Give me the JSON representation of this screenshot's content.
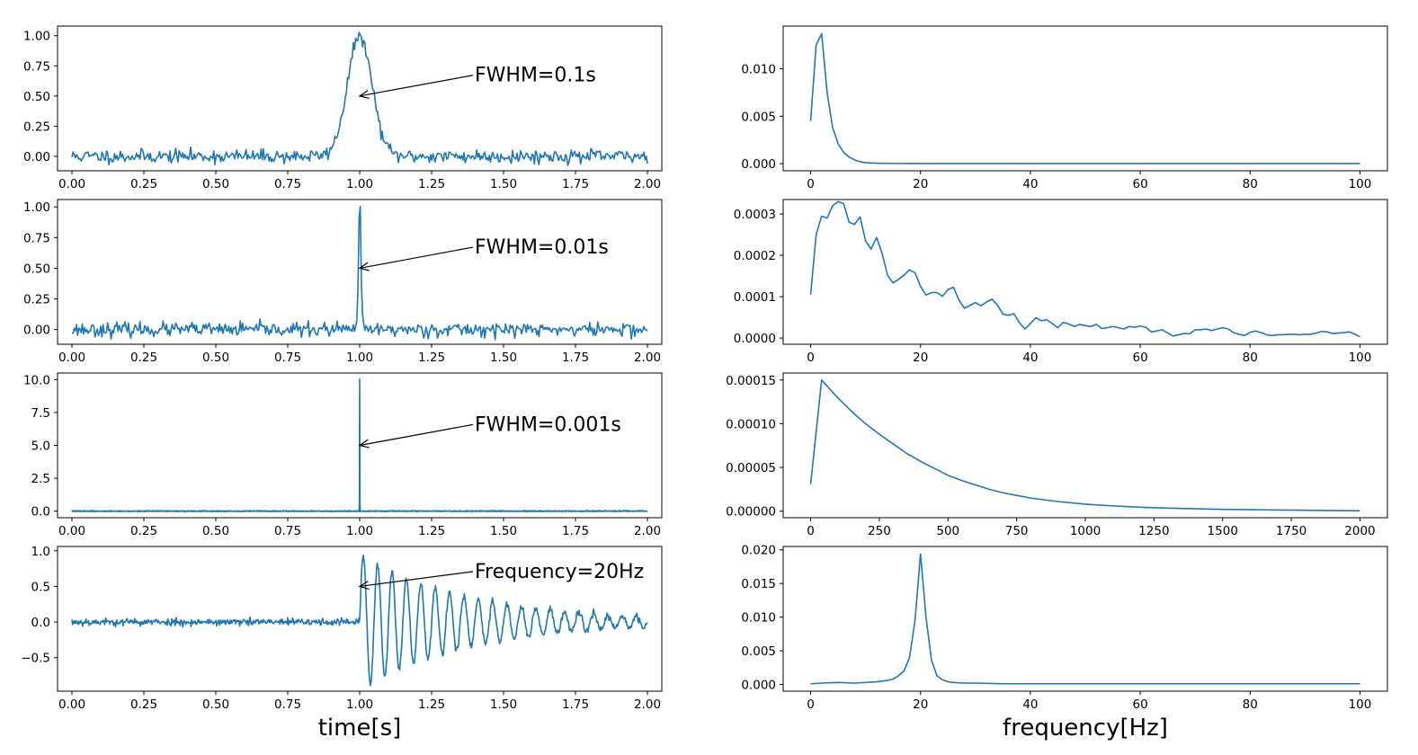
{
  "figure": {
    "left_xlabel": "time[s]",
    "right_xlabel": "frequency[Hz]",
    "line_color": "#1f77b4"
  },
  "chart_data": [
    {
      "type": "line",
      "panel": "time-1",
      "xlim": [
        -0.05,
        2.05
      ],
      "ylim": [
        -0.12,
        1.08
      ],
      "xticks": [
        "0.00",
        "0.25",
        "0.50",
        "0.75",
        "1.00",
        "1.25",
        "1.50",
        "1.75",
        "2.00"
      ],
      "xtick_values": [
        0,
        0.25,
        0.5,
        0.75,
        1,
        1.25,
        1.5,
        1.75,
        2
      ],
      "yticks": [
        "0.00",
        "0.25",
        "0.50",
        "0.75",
        "1.00"
      ],
      "ytick_values": [
        0,
        0.25,
        0.5,
        0.75,
        1
      ],
      "signal": {
        "kind": "gaussian",
        "center": 1.0,
        "fwhm": 0.1,
        "amplitude": 1.0,
        "noise": 0.028,
        "samples": 500,
        "seed": 11
      },
      "annotation": {
        "text": "FWHM=0.1s",
        "point": [
          1.0,
          0.5
        ],
        "text_at": [
          1.4,
          0.62
        ]
      }
    },
    {
      "type": "line",
      "panel": "time-2",
      "xlim": [
        -0.05,
        2.05
      ],
      "ylim": [
        -0.12,
        1.06
      ],
      "xticks": [
        "0.00",
        "0.25",
        "0.50",
        "0.75",
        "1.00",
        "1.25",
        "1.50",
        "1.75",
        "2.00"
      ],
      "xtick_values": [
        0,
        0.25,
        0.5,
        0.75,
        1,
        1.25,
        1.5,
        1.75,
        2
      ],
      "yticks": [
        "0.00",
        "0.25",
        "0.50",
        "0.75",
        "1.00"
      ],
      "ytick_values": [
        0,
        0.25,
        0.5,
        0.75,
        1
      ],
      "signal": {
        "kind": "gaussian",
        "center": 1.0,
        "fwhm": 0.01,
        "amplitude": 1.0,
        "noise": 0.028,
        "samples": 500,
        "seed": 23
      },
      "annotation": {
        "text": "FWHM=0.01s",
        "point": [
          1.0,
          0.5
        ],
        "text_at": [
          1.4,
          0.62
        ]
      }
    },
    {
      "type": "line",
      "panel": "time-3",
      "xlim": [
        -0.05,
        2.05
      ],
      "ylim": [
        -0.5,
        10.5
      ],
      "xticks": [
        "0.00",
        "0.25",
        "0.50",
        "0.75",
        "1.00",
        "1.25",
        "1.50",
        "1.75",
        "2.00"
      ],
      "xtick_values": [
        0,
        0.25,
        0.5,
        0.75,
        1,
        1.25,
        1.5,
        1.75,
        2
      ],
      "yticks": [
        "0.0",
        "2.5",
        "5.0",
        "7.5",
        "10.0"
      ],
      "ytick_values": [
        0,
        2.5,
        5,
        7.5,
        10
      ],
      "signal": {
        "kind": "gaussian",
        "center": 1.0,
        "fwhm": 0.001,
        "amplitude": 10.0,
        "noise": 0.02,
        "samples": 2001,
        "seed": 37
      },
      "annotation": {
        "text": "FWHM=0.001s",
        "point": [
          1.0,
          5.0
        ],
        "text_at": [
          1.4,
          6.1
        ]
      }
    },
    {
      "type": "line",
      "panel": "time-4",
      "xlim": [
        -0.05,
        2.05
      ],
      "ylim": [
        -0.97,
        1.06
      ],
      "xticks": [
        "0.00",
        "0.25",
        "0.50",
        "0.75",
        "1.00",
        "1.25",
        "1.50",
        "1.75",
        "2.00"
      ],
      "xtick_values": [
        0,
        0.25,
        0.5,
        0.75,
        1,
        1.25,
        1.5,
        1.75,
        2
      ],
      "yticks": [
        "−0.5",
        "0.0",
        "0.5",
        "1.0"
      ],
      "ytick_values": [
        -0.5,
        0,
        0.5,
        1
      ],
      "signal": {
        "kind": "damped_sine",
        "start": 1.0,
        "frequency": 20,
        "amplitude": 0.95,
        "decay": 2.6,
        "noise": 0.025,
        "samples": 900,
        "seed": 53
      },
      "annotation": {
        "text": "Frequency=20Hz",
        "point": [
          1.0,
          0.5
        ],
        "text_at": [
          1.4,
          0.62
        ]
      }
    },
    {
      "type": "line",
      "panel": "freq-1",
      "xlim": [
        -5,
        105
      ],
      "ylim": [
        -0.00075,
        0.0145
      ],
      "xticks": [
        "0",
        "20",
        "40",
        "60",
        "80",
        "100"
      ],
      "xtick_values": [
        0,
        20,
        40,
        60,
        80,
        100
      ],
      "yticks": [
        "0.000",
        "0.005",
        "0.010"
      ],
      "ytick_values": [
        0,
        0.005,
        0.01
      ],
      "x": [
        0,
        1,
        2,
        3,
        4,
        5,
        6,
        7,
        8,
        9,
        10,
        12,
        15,
        20,
        30,
        40,
        60,
        80,
        100
      ],
      "y": [
        0.0045,
        0.0125,
        0.0137,
        0.0075,
        0.0038,
        0.0021,
        0.0012,
        0.0007,
        0.0004,
        0.0002,
        0.0001,
        5e-05,
        2e-05,
        1e-05,
        1e-05,
        1e-05,
        1e-05,
        1e-05,
        1e-05
      ]
    },
    {
      "type": "line",
      "panel": "freq-2",
      "xlim": [
        -5,
        105
      ],
      "ylim": [
        -1.5e-05,
        0.000335
      ],
      "xticks": [
        "0",
        "20",
        "40",
        "60",
        "80",
        "100"
      ],
      "xtick_values": [
        0,
        20,
        40,
        60,
        80,
        100
      ],
      "yticks": [
        "0.0000",
        "0.0001",
        "0.0002",
        "0.0003"
      ],
      "ytick_values": [
        0,
        0.0001,
        0.0002,
        0.0003
      ],
      "x": [
        0,
        1,
        2,
        3,
        4,
        5,
        6,
        7,
        8,
        9,
        10,
        11,
        12,
        13,
        14,
        15,
        16,
        17,
        18,
        19,
        20,
        21,
        22,
        23,
        24,
        25,
        26,
        27,
        28,
        29,
        30,
        31,
        32,
        33,
        34,
        35,
        36,
        37,
        38,
        39,
        40,
        41,
        42,
        43,
        44,
        45,
        46,
        47,
        48,
        49,
        50,
        51,
        52,
        53,
        54,
        55,
        56,
        57,
        58,
        59,
        60,
        61,
        62,
        63,
        64,
        65,
        66,
        67,
        68,
        69,
        70,
        71,
        72,
        73,
        74,
        75,
        76,
        77,
        78,
        79,
        80,
        81,
        82,
        83,
        84,
        85,
        86,
        87,
        88,
        89,
        90,
        91,
        92,
        93,
        94,
        95,
        96,
        97,
        98,
        99,
        100
      ],
      "y": [
        0.000105,
        0.00025,
        0.000295,
        0.00029,
        0.00032,
        0.00033,
        0.000325,
        0.00028,
        0.000275,
        0.000293,
        0.000235,
        0.000215,
        0.000243,
        0.000205,
        0.000152,
        0.000133,
        0.000142,
        0.000152,
        0.000165,
        0.000158,
        0.000125,
        0.000104,
        0.00011,
        0.00011,
        0.000101,
        0.000117,
        0.000123,
        9.2e-05,
        7.2e-05,
        7.9e-05,
        8.6e-05,
        7.8e-05,
        8.7e-05,
        9.4e-05,
        8e-05,
        5.8e-05,
        5.5e-05,
        5.9e-05,
        3.7e-05,
        2.2e-05,
        3.5e-05,
        4.9e-05,
        4.2e-05,
        4.4e-05,
        3.5e-05,
        2.5e-05,
        3.8e-05,
        3.4e-05,
        2.8e-05,
        3.3e-05,
        3e-05,
        2.8e-05,
        3.3e-05,
        2.3e-05,
        2.5e-05,
        2.8e-05,
        2.5e-05,
        2.2e-05,
        2.8e-05,
        2.6e-05,
        2.9e-05,
        2.6e-05,
        1.5e-05,
        1.7e-05,
        2e-05,
        1.2e-05,
        5e-06,
        8e-06,
        1.1e-05,
        1e-05,
        2e-05,
        2e-05,
        2.2e-05,
        1.8e-05,
        2.2e-05,
        2.5e-05,
        2.2e-05,
        1.3e-05,
        9e-06,
        6e-06,
        1.4e-05,
        1.7e-05,
        1.3e-05,
        8e-06,
        6e-06,
        8e-06,
        8e-06,
        9e-06,
        9e-06,
        8e-06,
        9e-06,
        9e-06,
        1.2e-05,
        1.6e-05,
        1.5e-05,
        1.1e-05,
        1.2e-05,
        1.3e-05,
        1.5e-05,
        1e-05,
        3e-06
      ]
    },
    {
      "type": "line",
      "panel": "freq-3",
      "xlim": [
        -100,
        2100
      ],
      "ylim": [
        -7.5e-06,
        0.000158
      ],
      "xticks": [
        "0",
        "250",
        "500",
        "750",
        "1000",
        "1250",
        "1500",
        "1750",
        "2000"
      ],
      "xtick_values": [
        0,
        250,
        500,
        750,
        1000,
        1250,
        1500,
        1750,
        2000
      ],
      "yticks": [
        "0.00000",
        "0.00005",
        "0.00010",
        "0.00015"
      ],
      "ytick_values": [
        0,
        5e-05,
        0.0001,
        0.00015
      ],
      "x": [
        0,
        40,
        80,
        120,
        160,
        200,
        250,
        300,
        350,
        400,
        450,
        500,
        550,
        600,
        650,
        700,
        750,
        800,
        900,
        1000,
        1100,
        1200,
        1300,
        1400,
        1500,
        1600,
        1700,
        1800,
        1900,
        2000
      ],
      "y": [
        3.1e-05,
        0.00015,
        0.000136,
        0.000123,
        0.000111,
        0.0001,
        8.8e-05,
        7.7e-05,
        6.6e-05,
        5.7e-05,
        4.9e-05,
        4.1e-05,
        3.5e-05,
        3e-05,
        2.5e-05,
        2.1e-05,
        1.8e-05,
        1.5e-05,
        1.1e-05,
        8e-06,
        6e-06,
        4.5e-06,
        3.5e-06,
        2.7e-06,
        2.1e-06,
        1.7e-06,
        1.3e-06,
        1e-06,
        7e-07,
        4e-07
      ]
    },
    {
      "type": "line",
      "panel": "freq-4",
      "xlim": [
        -5,
        105
      ],
      "ylim": [
        -0.001,
        0.0205
      ],
      "xticks": [
        "0",
        "20",
        "40",
        "60",
        "80",
        "100"
      ],
      "xtick_values": [
        0,
        20,
        40,
        60,
        80,
        100
      ],
      "yticks": [
        "0.000",
        "0.005",
        "0.010",
        "0.015",
        "0.020"
      ],
      "ytick_values": [
        0,
        0.005,
        0.01,
        0.015,
        0.02
      ],
      "x": [
        0,
        2,
        5,
        8,
        10,
        12,
        14,
        15,
        16,
        17,
        18,
        19,
        20,
        21,
        22,
        23,
        24,
        25,
        26,
        28,
        30,
        35,
        40,
        50,
        60,
        70,
        80,
        90,
        100
      ],
      "y": [
        0.0001,
        0.0002,
        0.0003,
        0.0002,
        0.0003,
        0.0004,
        0.0006,
        0.0008,
        0.0013,
        0.002,
        0.004,
        0.0095,
        0.0194,
        0.01,
        0.0036,
        0.0013,
        0.0007,
        0.0004,
        0.0003,
        0.0002,
        0.0002,
        0.0001,
        0.0001,
        0.0001,
        0.0001,
        0.0001,
        0.0001,
        0.0001,
        0.0001
      ]
    }
  ]
}
